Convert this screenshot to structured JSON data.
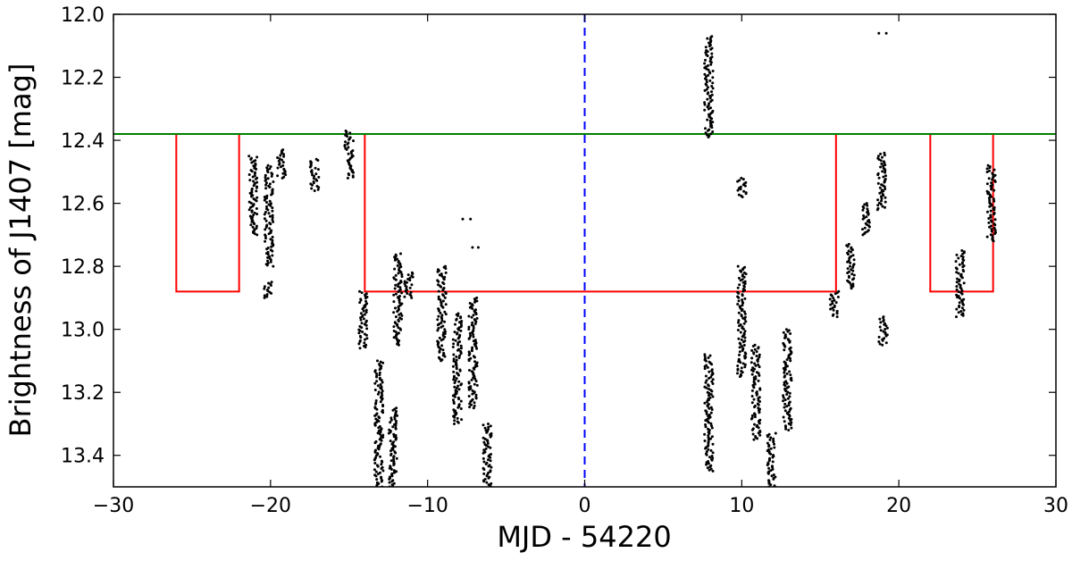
{
  "chart_data": {
    "type": "scatter",
    "title": "",
    "xlabel": "MJD - 54220",
    "ylabel": "Brightness of J1407 [mag]",
    "xlim": [
      -30,
      30
    ],
    "ylim": [
      13.5,
      12.0
    ],
    "y_inverted": true,
    "grid": false,
    "legend": "none",
    "x_ticks": [
      -30,
      -20,
      -10,
      0,
      10,
      20,
      30
    ],
    "x_tick_labels": [
      "−30",
      "−20",
      "−10",
      "0",
      "10",
      "20",
      "30"
    ],
    "y_ticks": [
      12.0,
      12.2,
      12.4,
      12.6,
      12.8,
      13.0,
      13.2,
      13.4
    ],
    "y_tick_labels": [
      "12.0",
      "12.2",
      "12.4",
      "12.6",
      "12.8",
      "13.0",
      "13.2",
      "13.4"
    ],
    "colors": {
      "points": "#000000",
      "reference_line": "#008000",
      "window": "#ff0000",
      "epoch_line": "#0000ff"
    },
    "reference_line": {
      "y": 12.38
    },
    "epoch_line": {
      "x": 0
    },
    "window_outline": {
      "x": [
        -26,
        -26,
        -22,
        -22,
        -14,
        -14,
        16,
        16,
        22,
        22,
        26,
        26
      ],
      "y": [
        12.38,
        12.88,
        12.88,
        12.38,
        12.38,
        12.88,
        12.88,
        12.38,
        12.38,
        12.88,
        12.88,
        12.38
      ]
    },
    "point_clusters": [
      {
        "x": -21.1,
        "y_min": 12.45,
        "y_max": 12.7
      },
      {
        "x": -20.1,
        "y_min": 12.48,
        "y_max": 12.8
      },
      {
        "x": -20.2,
        "y_min": 12.85,
        "y_max": 12.9
      },
      {
        "x": -19.3,
        "y_min": 12.43,
        "y_max": 12.52
      },
      {
        "x": -17.2,
        "y_min": 12.46,
        "y_max": 12.56
      },
      {
        "x": -15.0,
        "y_min": 12.37,
        "y_max": 12.52
      },
      {
        "x": -14.1,
        "y_min": 12.88,
        "y_max": 13.06
      },
      {
        "x": -13.1,
        "y_min": 13.1,
        "y_max": 13.5
      },
      {
        "x": -12.2,
        "y_min": 13.25,
        "y_max": 13.5
      },
      {
        "x": -11.9,
        "y_min": 12.76,
        "y_max": 13.05
      },
      {
        "x": -11.2,
        "y_min": 12.82,
        "y_max": 12.9
      },
      {
        "x": -9.1,
        "y_min": 12.8,
        "y_max": 13.1
      },
      {
        "x": -8.1,
        "y_min": 12.95,
        "y_max": 13.3
      },
      {
        "x": -7.1,
        "y_min": 12.9,
        "y_max": 13.25
      },
      {
        "x": -7.5,
        "y_min": 12.65,
        "y_max": 12.65
      },
      {
        "x": -7.0,
        "y_min": 12.74,
        "y_max": 12.74
      },
      {
        "x": -6.2,
        "y_min": 13.3,
        "y_max": 13.5
      },
      {
        "x": 7.9,
        "y_min": 12.07,
        "y_max": 12.39
      },
      {
        "x": 7.9,
        "y_min": 13.08,
        "y_max": 13.45
      },
      {
        "x": 10.0,
        "y_min": 12.8,
        "y_max": 13.15
      },
      {
        "x": 10.0,
        "y_min": 12.52,
        "y_max": 12.58
      },
      {
        "x": 10.9,
        "y_min": 13.05,
        "y_max": 13.35
      },
      {
        "x": 11.9,
        "y_min": 13.33,
        "y_max": 13.5
      },
      {
        "x": 12.9,
        "y_min": 13.0,
        "y_max": 13.32
      },
      {
        "x": 15.9,
        "y_min": 12.88,
        "y_max": 12.96
      },
      {
        "x": 16.9,
        "y_min": 12.73,
        "y_max": 12.87
      },
      {
        "x": 17.9,
        "y_min": 12.6,
        "y_max": 12.7
      },
      {
        "x": 18.9,
        "y_min": 12.44,
        "y_max": 12.62
      },
      {
        "x": 19.0,
        "y_min": 12.06,
        "y_max": 12.06
      },
      {
        "x": 19.0,
        "y_min": 12.96,
        "y_max": 13.05
      },
      {
        "x": 23.9,
        "y_min": 12.75,
        "y_max": 12.96
      },
      {
        "x": 25.9,
        "y_min": 12.48,
        "y_max": 12.72
      }
    ]
  }
}
